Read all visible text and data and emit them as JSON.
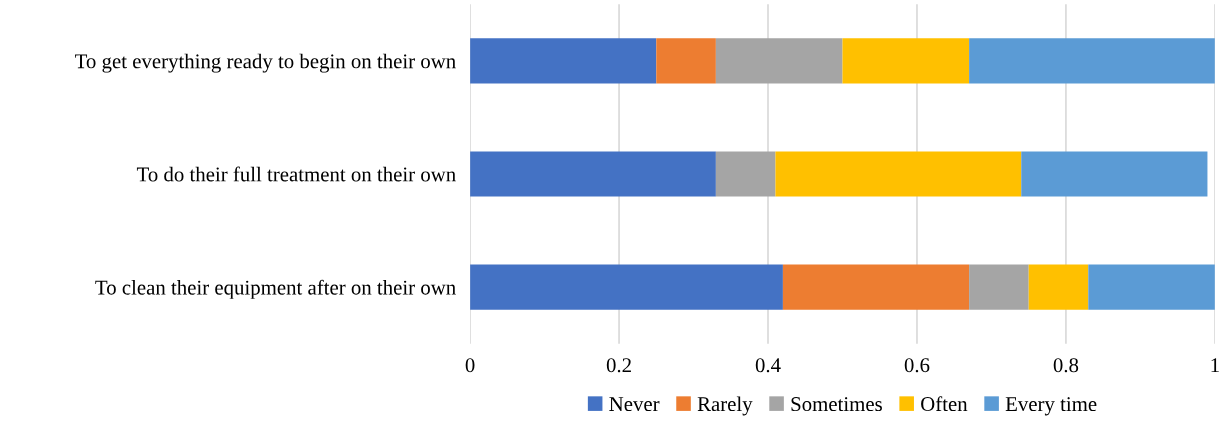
{
  "chart_data": {
    "type": "bar",
    "orientation": "horizontal",
    "stacked": true,
    "categories": [
      "To get everything ready to begin on their own",
      "To do their full treatment on their own",
      "To clean their equipment after on their own"
    ],
    "series": [
      {
        "name": "Never",
        "color": "#4472c4",
        "values": [
          0.25,
          0.33,
          0.42
        ]
      },
      {
        "name": "Rarely",
        "color": "#ed7d31",
        "values": [
          0.08,
          0,
          0.25
        ]
      },
      {
        "name": "Sometimes",
        "color": "#a5a5a5",
        "values": [
          0.17,
          0.08,
          0.08
        ]
      },
      {
        "name": "Often",
        "color": "#ffc000",
        "values": [
          0.17,
          0.33,
          0.08
        ]
      },
      {
        "name": "Every time",
        "color": "#5b9bd5",
        "values": [
          0.33,
          0.25,
          0.17
        ]
      }
    ],
    "xlim": [
      0,
      1
    ],
    "xticks": [
      0,
      0.2,
      0.4,
      0.6,
      0.8,
      1
    ],
    "grid": "x",
    "legend": "bottom"
  }
}
